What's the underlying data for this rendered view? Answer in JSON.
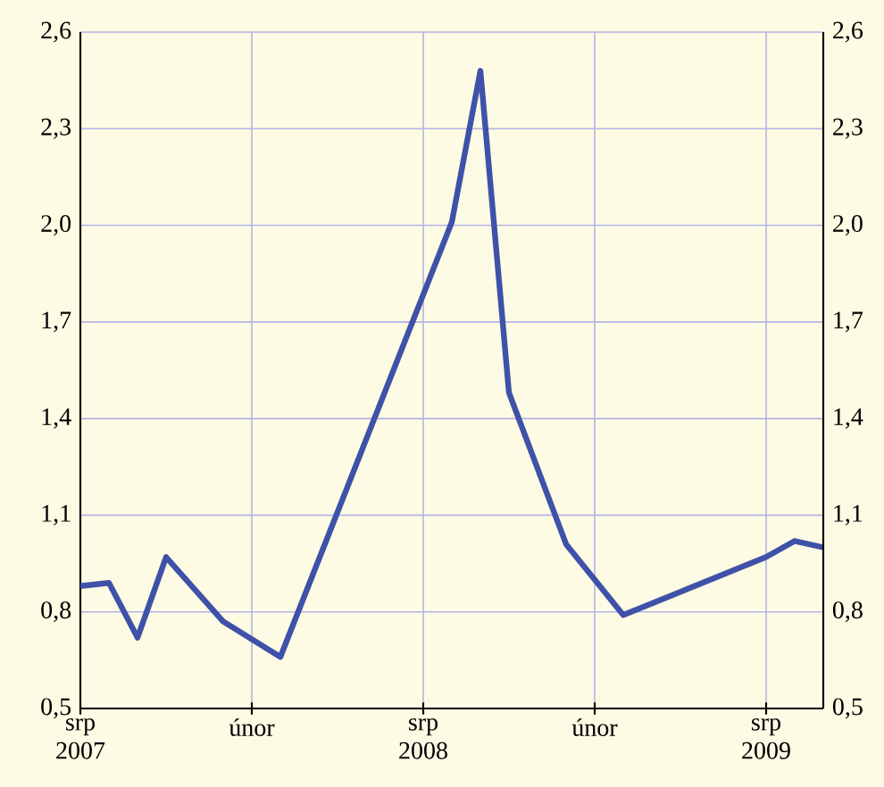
{
  "chart_data": {
    "type": "line",
    "x": [
      "2007-08",
      "2007-09",
      "2007-10",
      "2007-11",
      "2008-01",
      "2008-03",
      "2008-09",
      "2008-10",
      "2008-11",
      "2009-01",
      "2009-03",
      "2009-08",
      "2009-09",
      "2009-10"
    ],
    "series": [
      {
        "color": "#3f51a8",
        "values": [
          0.88,
          0.89,
          0.72,
          0.97,
          0.77,
          0.66,
          2.01,
          2.48,
          1.48,
          1.01,
          0.79,
          0.97,
          1.02,
          1.0
        ]
      }
    ],
    "xlim": [
      "2007-08",
      "2009-10"
    ],
    "xticks": [
      {
        "value": "2007-08",
        "label": "srp 2007"
      },
      {
        "value": "2008-02",
        "label": "únor"
      },
      {
        "value": "2008-08",
        "label": "srp 2008"
      },
      {
        "value": "2009-02",
        "label": "únor"
      },
      {
        "value": "2009-08",
        "label": "srp 2009"
      }
    ],
    "ylim": [
      0.5,
      2.6
    ],
    "yticks": [
      {
        "value": 0.5,
        "label": "0,5"
      },
      {
        "value": 0.8,
        "label": "0,8"
      },
      {
        "value": 1.1,
        "label": "1,1"
      },
      {
        "value": 1.4,
        "label": "1,4"
      },
      {
        "value": 1.7,
        "label": "1,7"
      },
      {
        "value": 2.0,
        "label": "2,0"
      },
      {
        "value": 2.3,
        "label": "2,3"
      },
      {
        "value": 2.6,
        "label": "2,6"
      }
    ],
    "y2lim": [
      0.5,
      2.6
    ],
    "y2ticks": [
      {
        "value": 0.5,
        "label": "0,5"
      },
      {
        "value": 0.8,
        "label": "0,8"
      },
      {
        "value": 1.1,
        "label": "1,1"
      },
      {
        "value": 1.4,
        "label": "1,4"
      },
      {
        "value": 1.7,
        "label": "1,7"
      },
      {
        "value": 2.0,
        "label": "2,0"
      },
      {
        "value": 2.3,
        "label": "2,3"
      },
      {
        "value": 2.6,
        "label": "2,6"
      }
    ],
    "grid": true
  }
}
